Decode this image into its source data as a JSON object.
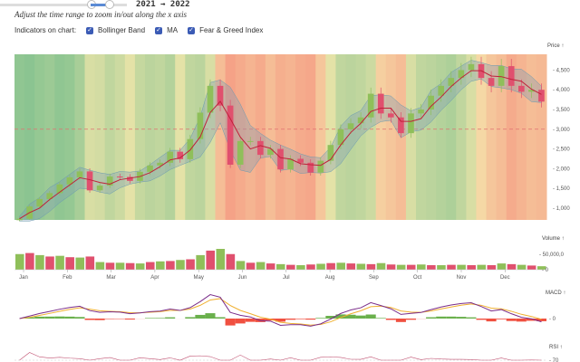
{
  "header": {
    "range_label": "2021 → 2022",
    "caption": "Adjust the time range to zoom in/out along the x axis"
  },
  "indicators": {
    "label": "Indicators on chart:",
    "items": [
      {
        "label": "Bollinger Band",
        "checked": true
      },
      {
        "label": "MA",
        "checked": true
      },
      {
        "label": "Fear & Greed Index",
        "checked": true
      }
    ]
  },
  "colors": {
    "up": "#8fbf5a",
    "down": "#e0506e",
    "ma": "#c0203a",
    "band": "#7a9ab8",
    "macd": "#7a2d8a",
    "signal": "#f0b030"
  },
  "chart_data": [
    {
      "type": "candlestick",
      "title": "Price ↑",
      "ylim": [
        700,
        4900
      ],
      "yticks": [
        1000,
        1500,
        2000,
        2500,
        3000,
        3500,
        4000,
        4500
      ],
      "ytick_labels": [
        "1,000",
        "1,500",
        "2,000",
        "2,500",
        "3,000",
        "3,500",
        "4,000",
        "4,500"
      ],
      "reference_line": 3000,
      "x_labels": [
        "Jan",
        "Feb",
        "Mar",
        "Apr",
        "May",
        "Jun",
        "Jul",
        "Aug",
        "Sep",
        "Oct",
        "Nov",
        "Dec"
      ],
      "weekly_close": [
        730,
        1040,
        1230,
        1380,
        1600,
        1780,
        1930,
        1450,
        1570,
        1800,
        1790,
        1690,
        1920,
        2080,
        2150,
        2430,
        2240,
        2750,
        3420,
        4100,
        3600,
        2100,
        2700,
        2700,
        2350,
        2500,
        1980,
        2250,
        2150,
        1900,
        2200,
        2600,
        3000,
        3150,
        3300,
        3900,
        3400,
        3300,
        2900,
        3400,
        3500,
        3850,
        4100,
        4300,
        4500,
        4650,
        4300,
        4100,
        4600,
        4100,
        3950,
        4000,
        3700
      ],
      "fear_greed": [
        90,
        92,
        88,
        85,
        90,
        88,
        80,
        60,
        62,
        70,
        65,
        55,
        68,
        72,
        70,
        75,
        55,
        70,
        72,
        60,
        30,
        15,
        20,
        25,
        20,
        30,
        22,
        25,
        20,
        18,
        35,
        55,
        70,
        72,
        70,
        65,
        40,
        35,
        30,
        60,
        70,
        72,
        75,
        78,
        70,
        60,
        45,
        35,
        30,
        20,
        25,
        30,
        28
      ]
    },
    {
      "type": "bar",
      "title": "Volume ↑",
      "yticks": [
        0,
        50000
      ],
      "ytick_labels": [
        "0",
        "50,000,0"
      ],
      "values": [
        45,
        48,
        42,
        38,
        40,
        36,
        35,
        38,
        22,
        20,
        20,
        19,
        18,
        22,
        24,
        25,
        28,
        30,
        42,
        55,
        60,
        45,
        25,
        20,
        22,
        18,
        16,
        14,
        13,
        15,
        17,
        19,
        20,
        18,
        17,
        16,
        19,
        15,
        14,
        14,
        15,
        13,
        13,
        14,
        14,
        13,
        14,
        13,
        18,
        16,
        14,
        12,
        10
      ]
    },
    {
      "type": "line",
      "title": "MACD ↑",
      "yticks": [
        0
      ],
      "ytick_labels": [
        "0"
      ]
    },
    {
      "type": "line",
      "title": "RSI ↑",
      "yticks": [
        70
      ],
      "ytick_labels": [
        "70"
      ]
    }
  ]
}
